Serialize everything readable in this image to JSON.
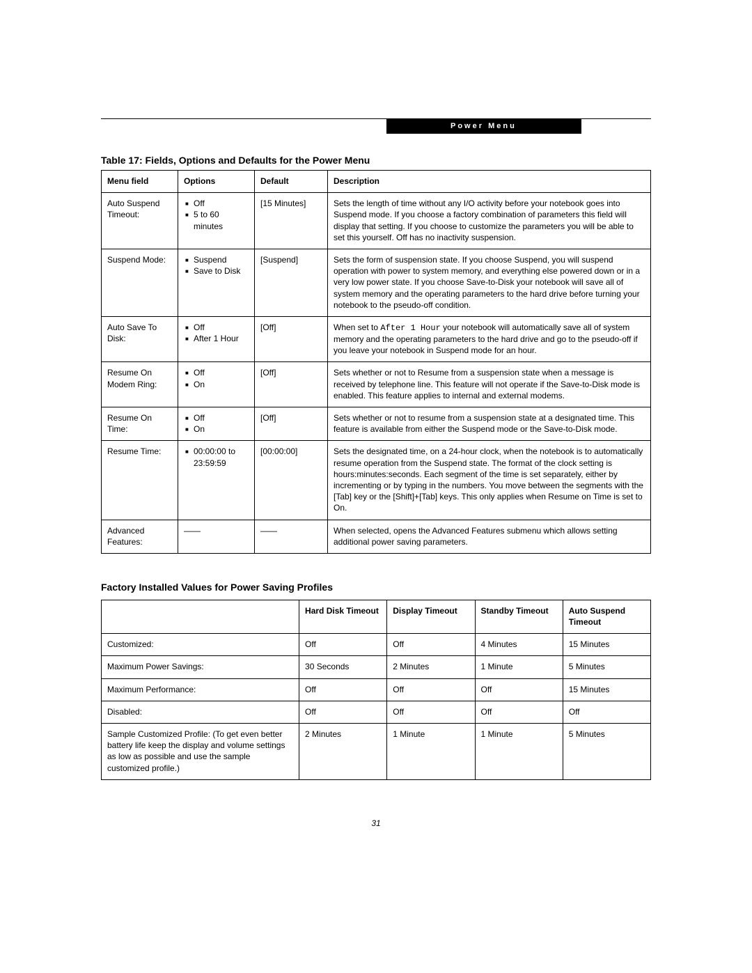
{
  "header": {
    "tab": "Power Menu"
  },
  "table1": {
    "title": "Table 17: Fields, Options and Defaults for the Power Menu",
    "columns": [
      "Menu field",
      "Options",
      "Default",
      "Description"
    ],
    "rows": [
      {
        "field": "Auto Suspend Timeout:",
        "indent": false,
        "options": [
          "Off",
          "5 to 60 minutes"
        ],
        "default": "[15 Minutes]",
        "desc": "Sets the length of time without any I/O activity before your notebook goes into Suspend mode. If you choose a factory combination of parameters this field will display that setting. If you choose to customize the parameters you will be able to set this yourself. Off has no inactivity suspension."
      },
      {
        "field": "Suspend Mode:",
        "indent": false,
        "options": [
          "Suspend",
          "Save to Disk"
        ],
        "default": "[Suspend]",
        "desc": "Sets the form of suspension state. If you choose Suspend, you will suspend operation with power to system memory, and everything else powered down or in a very low power state. If you choose Save-to-Disk your notebook will save all of system memory and the operating parameters to the hard drive before turning your notebook to the pseudo-off condition."
      },
      {
        "field": "Auto Save To Disk:",
        "indent": true,
        "options": [
          "Off",
          "After 1 Hour"
        ],
        "default": "[Off]",
        "desc_pre": "When set to ",
        "desc_mono": "After 1 Hour",
        "desc_post": " your notebook will automatically save all of system memory and the operating parameters to the hard drive and go to the pseudo-off if you leave your notebook in Suspend mode for an hour."
      },
      {
        "field": "Resume On Modem Ring:",
        "indent": false,
        "options": [
          "Off",
          "On"
        ],
        "default": "[Off]",
        "desc": "Sets whether or not to Resume from a suspension state when a message is received by telephone line. This feature will not operate if the Save-to-Disk mode is enabled. This feature applies to internal and external modems."
      },
      {
        "field": "Resume On Time:",
        "indent": false,
        "options": [
          "Off",
          "On"
        ],
        "default": "[Off]",
        "desc": "Sets whether or not to resume from a suspension state at a designated time. This feature is available from either the Suspend mode or the Save-to-Disk mode."
      },
      {
        "field": "Resume Time:",
        "indent": false,
        "options": [
          "00:00:00 to 23:59:59"
        ],
        "default": "[00:00:00]",
        "desc": "Sets the designated time, on a 24-hour clock, when the notebook is to automatically resume operation from the Suspend state. The format of the clock setting is hours:minutes:seconds. Each segment of the time is set separately, either by incrementing or by typing in the numbers. You move between the segments with the [Tab] key or the [Shift]+[Tab] keys. This only applies when Resume on Time is set to On."
      },
      {
        "field": "Advanced Features:",
        "indent": false,
        "options_dash": "——",
        "default_dash": "——",
        "desc": "When selected, opens the Advanced Features submenu which allows setting additional power saving parameters."
      }
    ]
  },
  "table2": {
    "title": "Factory Installed Values for Power Saving Profiles",
    "columns": [
      "",
      "Hard Disk Timeout",
      "Display Timeout",
      "Standby Timeout",
      "Auto Suspend Timeout"
    ],
    "rows": [
      {
        "label": "Customized:",
        "c": [
          "Off",
          "Off",
          "4 Minutes",
          "15 Minutes"
        ]
      },
      {
        "label": "Maximum Power Savings:",
        "c": [
          "30 Seconds",
          "2 Minutes",
          "1 Minute",
          "5 Minutes"
        ]
      },
      {
        "label": "Maximum Performance:",
        "c": [
          "Off",
          "Off",
          "Off",
          "15 Minutes"
        ]
      },
      {
        "label": "Disabled:",
        "c": [
          "Off",
          "Off",
          "Off",
          "Off"
        ]
      },
      {
        "label": "Sample Customized Profile: (To get even better battery life keep the display and volume settings as low as possible and use the sample customized profile.)",
        "c": [
          "2 Minutes",
          "1 Minute",
          "1 Minute",
          "5 Minutes"
        ]
      }
    ]
  },
  "page_number": "31"
}
